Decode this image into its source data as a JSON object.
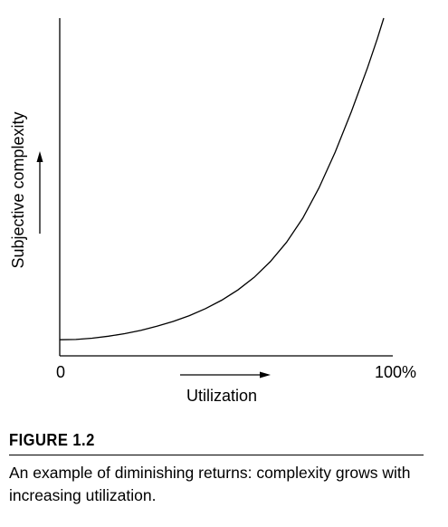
{
  "chart_data": {
    "type": "line",
    "title": "",
    "xlabel": "Utilization",
    "ylabel": "Subjective complexity",
    "x_tick_labels": {
      "start": "0",
      "end": "100%"
    },
    "x": [
      0,
      5,
      10,
      15,
      20,
      25,
      30,
      35,
      40,
      45,
      50,
      55,
      60,
      65,
      70,
      75,
      80,
      85,
      90,
      95,
      98,
      100
    ],
    "series": [
      {
        "values": [
          0.0,
          0.1,
          0.5,
          1.1,
          1.9,
          2.9,
          4.2,
          5.7,
          7.5,
          9.7,
          12.3,
          15.5,
          19.4,
          24.3,
          30.3,
          37.8,
          47.2,
          58.3,
          70.9,
          84.6,
          93.5,
          100
        ]
      }
    ],
    "xlim": [
      0,
      100
    ],
    "ylim": [
      -5,
      100
    ],
    "grid": false,
    "legend": false,
    "axis_arrows": true
  },
  "figure": {
    "label": "FIGURE 1.2",
    "caption": "An example of diminishing returns: complexity grows with increasing utilization."
  },
  "colors": {
    "ink": "#000000",
    "background": "#ffffff"
  }
}
